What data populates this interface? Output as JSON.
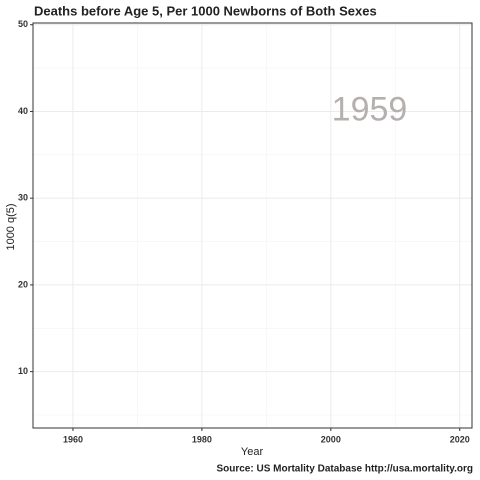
{
  "chart_data": {
    "type": "line",
    "title": "Deaths before Age 5, Per 1000 Newborns of Both Sexes",
    "x_label": "Year",
    "y_label": "1000 q(5)",
    "caption": "Source: US Mortality Database http://usa.mortality.org",
    "annotation": {
      "text": "1959",
      "x": 2006,
      "y": 40
    },
    "xlim": [
      1953.8,
      2021.9
    ],
    "xticks": [
      1960,
      1980,
      2000,
      2020
    ],
    "xminor": [
      1970,
      1990,
      2010
    ],
    "ylim": [
      3.5,
      50.2
    ],
    "yticks": [
      10,
      20,
      30,
      40,
      50
    ],
    "yminor": [
      5,
      15,
      25,
      35,
      45
    ],
    "grid": true
  }
}
